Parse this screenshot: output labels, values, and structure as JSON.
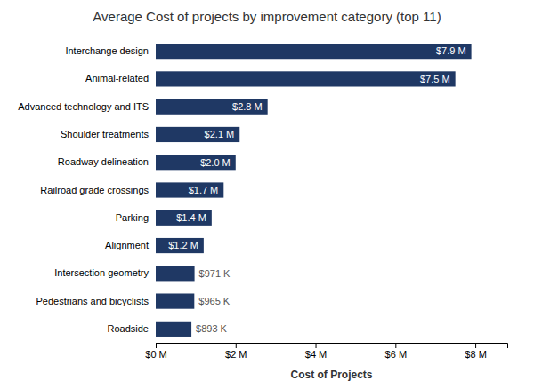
{
  "chart_data": {
    "type": "bar",
    "orientation": "horizontal",
    "title": "Average Cost of projects by improvement category (top 11)",
    "categories": [
      "Roadside",
      "Pedestrians and bicyclists",
      "Intersection geometry",
      "Alignment",
      "Parking",
      "Railroad grade crossings",
      "Roadway delineation",
      "Shoulder treatments",
      "Advanced technology and ITS",
      "Animal-related",
      "Interchange design"
    ],
    "values": [
      893000,
      965000,
      971000,
      1200000,
      1400000,
      1700000,
      2000000,
      2100000,
      2800000,
      7500000,
      7900000
    ],
    "value_labels": [
      "$893 K",
      "$965 K",
      "$971 K",
      "$1.2 M",
      "$1.4 M",
      "$1.7 M",
      "$2.0 M",
      "$2.1 M",
      "$2.8 M",
      "$7.5 M",
      "$7.9 M"
    ],
    "data_labels": true,
    "color": "#1f3864",
    "xlabel": "Cost of Projects",
    "xlim": [
      0,
      8800000
    ],
    "xticks": [
      {
        "value": 0,
        "label": "$0 M"
      },
      {
        "value": 2000000,
        "label": "$2 M"
      },
      {
        "value": 4000000,
        "label": "$4 M"
      },
      {
        "value": 6000000,
        "label": "$6 M"
      },
      {
        "value": 8000000,
        "label": "$8 M"
      }
    ],
    "grid": false
  }
}
